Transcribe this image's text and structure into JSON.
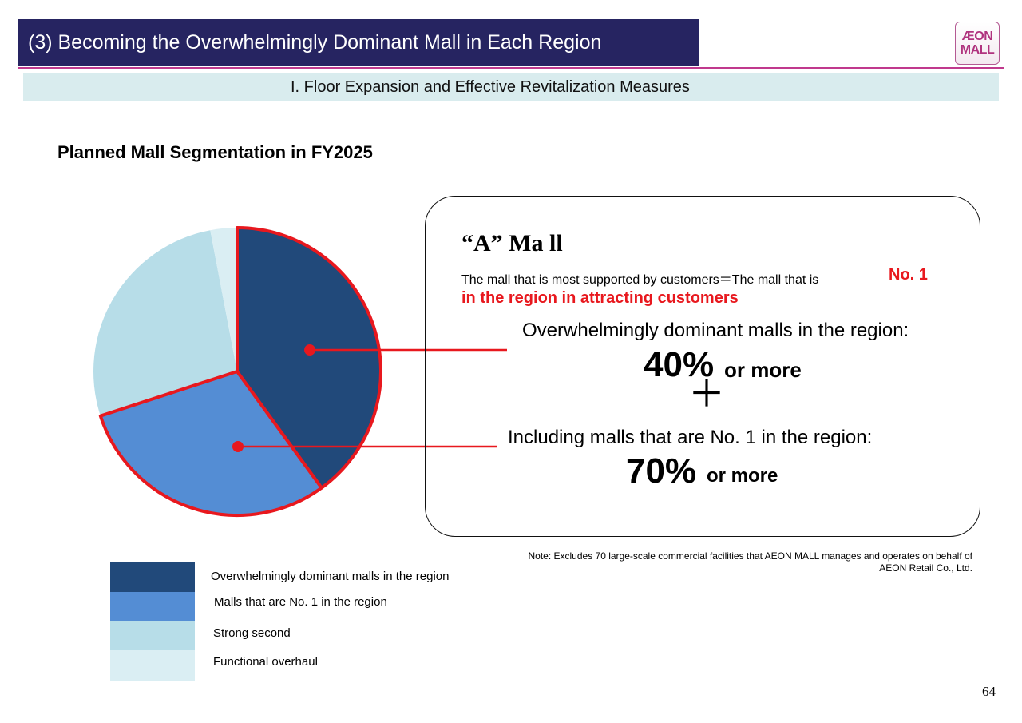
{
  "header": {
    "title": "(3) Becoming the Overwhelmingly Dominant Mall in Each Region",
    "logo_top": "ÆON",
    "logo_bottom": "MALL",
    "subtitle": "I. Floor Expansion and Effective Revitalization Measures"
  },
  "section_heading": "Planned Mall Segmentation in FY2025",
  "info_box": {
    "title": "“A” Ma ll",
    "description_part1": "The mall that is most supported by customers＝The mall that is",
    "description_highlight": "No. 1",
    "description_part2": "in the region in attracting customers",
    "dominant_label": "Overwhelmingly dominant malls in the region:",
    "dominant_value": "40%",
    "dominant_suffix": "or more",
    "plus": "＋",
    "no1_label": "Including malls that are No. 1 in the region:",
    "no1_value": "70%",
    "no1_suffix": "or more"
  },
  "note": "Note: Excludes 70 large-scale commercial facilities that AEON MALL manages and operates on behalf of AEON Retail Co., Ltd.",
  "page_number": "64",
  "colors": {
    "dominant": "#21497a",
    "no1": "#548dd4",
    "strong_second": "#b7dde8",
    "functional_overhaul": "#daeef3",
    "highlight_red": "#e8181e"
  },
  "chart_data": {
    "type": "pie",
    "title": "Planned Mall Segmentation in FY2025",
    "unit": "%",
    "slices": [
      {
        "label": "Overwhelmingly dominant malls in the region",
        "value": 40,
        "color": "#21497a"
      },
      {
        "label": "Malls that are No. 1 in the region",
        "value": 30,
        "color": "#548dd4"
      },
      {
        "label": "Strong second",
        "value": 27,
        "color": "#b7dde8"
      },
      {
        "label": "Functional overhaul",
        "value": 3,
        "color": "#daeef3"
      }
    ],
    "legend_position": "bottom-left"
  }
}
